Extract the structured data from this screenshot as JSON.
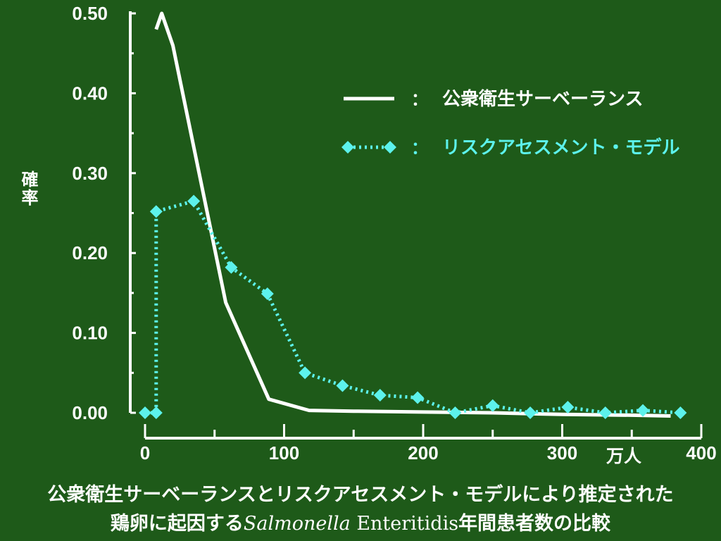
{
  "chart_data": {
    "type": "line",
    "ylabel": "確率",
    "xunit": "万人",
    "xlim": [
      0,
      400
    ],
    "ylim": [
      0,
      0.5
    ],
    "yticks": [
      0.0,
      0.1,
      0.2,
      0.3,
      0.4,
      0.5
    ],
    "ytick_labels": [
      "0.00",
      "0.10",
      "0.20",
      "0.30",
      "0.40",
      "0.50"
    ],
    "xticks": [
      0,
      100,
      200,
      300,
      400
    ],
    "xtick_labels": [
      "0",
      "100",
      "200",
      "300",
      "400"
    ],
    "legend_position": "top-right",
    "series": [
      {
        "name": "公衆衛生サーベーランス",
        "color": "#ffffff",
        "style": "solid",
        "x": [
          8,
          12,
          20,
          58,
          89,
          118,
          150,
          200,
          250,
          300,
          350,
          378
        ],
        "y": [
          0.48,
          0.5,
          0.46,
          0.138,
          0.017,
          0.003,
          0.002,
          0.001,
          0.0,
          -0.002,
          -0.003,
          -0.004
        ]
      },
      {
        "name": "リスクアセスメント・モデル",
        "color": "#5cf2ec",
        "style": "dotted-diamond",
        "x": [
          0,
          8,
          8,
          35,
          62,
          88,
          115,
          142,
          169,
          196,
          223,
          250,
          277,
          304,
          331,
          358,
          385
        ],
        "y": [
          0.0,
          0.0,
          0.252,
          0.265,
          0.182,
          0.149,
          0.05,
          0.034,
          0.022,
          0.019,
          0.0,
          0.009,
          0.0,
          0.007,
          0.0,
          0.003,
          0.0
        ]
      }
    ]
  },
  "legend": {
    "separator": "：",
    "items": [
      "公衆衛生サーベーランス",
      "リスクアセスメント・モデル"
    ]
  },
  "caption": {
    "line1": "公衆衛生サーベーランスとリスクアセスメント・モデルにより推定された",
    "line2_prefix": "鶏卵に起因する",
    "line2_italic": "Salmonella",
    "line2_plain": " Enteritidis",
    "line2_suffix": "年間患者数の比較"
  }
}
